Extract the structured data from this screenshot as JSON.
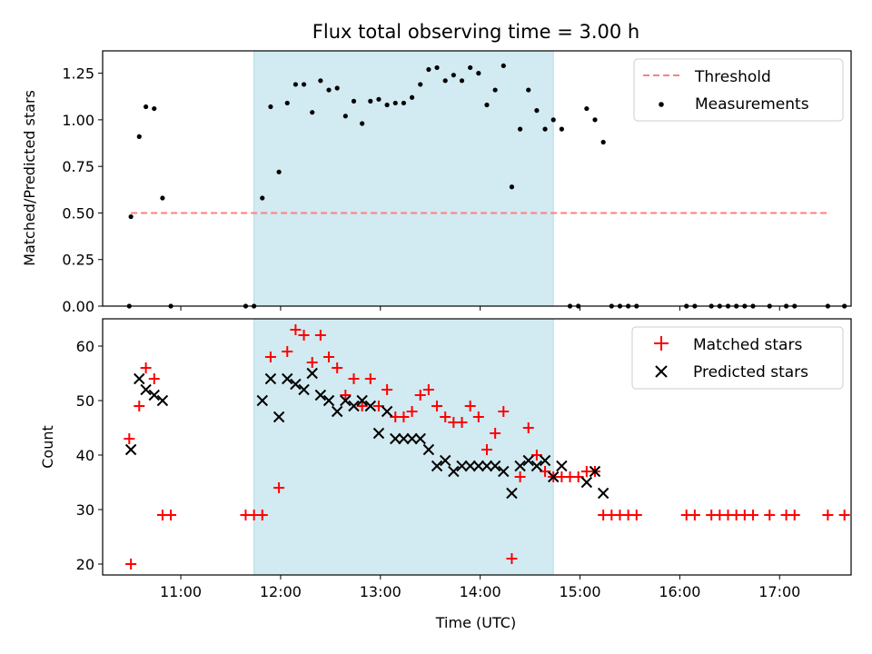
{
  "figure": {
    "title": "Flux total observing time = 3.00 h",
    "xlabel": "Time (UTC)"
  },
  "chart_data": [
    {
      "type": "scatter",
      "ylabel": "Matched/Predicted stars",
      "xlim": [
        "10:13",
        "17:43"
      ],
      "ylim": [
        0,
        1.37
      ],
      "yticks": [
        "0.00",
        "0.25",
        "0.50",
        "0.75",
        "1.00",
        "1.25"
      ],
      "shaded_span": {
        "start": "11:44",
        "end": "14:44",
        "color": "#add8e6"
      },
      "threshold": {
        "value": 0.5,
        "x_start": "10:30",
        "x_end": "17:30",
        "color": "#ff7f7f",
        "style": "dashed"
      },
      "legend": {
        "placement": "top-right",
        "threshold_label": "Threshold",
        "measurements_label": "Measurements"
      },
      "series": [
        {
          "name": "Measurements",
          "color": "#000000",
          "marker": "dot",
          "points": [
            [
              "10:29",
              0.0
            ],
            [
              "10:30",
              0.48
            ],
            [
              "10:35",
              0.91
            ],
            [
              "10:39",
              1.07
            ],
            [
              "10:44",
              1.06
            ],
            [
              "10:49",
              0.58
            ],
            [
              "10:54",
              0.0
            ],
            [
              "11:39",
              0.0
            ],
            [
              "11:44",
              0.0
            ],
            [
              "11:49",
              0.58
            ],
            [
              "11:54",
              1.07
            ],
            [
              "11:59",
              0.72
            ],
            [
              "12:04",
              1.09
            ],
            [
              "12:09",
              1.19
            ],
            [
              "12:14",
              1.19
            ],
            [
              "12:19",
              1.04
            ],
            [
              "12:24",
              1.21
            ],
            [
              "12:29",
              1.16
            ],
            [
              "12:34",
              1.17
            ],
            [
              "12:39",
              1.02
            ],
            [
              "12:44",
              1.1
            ],
            [
              "12:49",
              0.98
            ],
            [
              "12:54",
              1.1
            ],
            [
              "12:59",
              1.11
            ],
            [
              "13:04",
              1.08
            ],
            [
              "13:09",
              1.09
            ],
            [
              "13:14",
              1.09
            ],
            [
              "13:19",
              1.12
            ],
            [
              "13:24",
              1.19
            ],
            [
              "13:29",
              1.27
            ],
            [
              "13:34",
              1.28
            ],
            [
              "13:39",
              1.21
            ],
            [
              "13:44",
              1.24
            ],
            [
              "13:49",
              1.21
            ],
            [
              "13:54",
              1.28
            ],
            [
              "13:59",
              1.25
            ],
            [
              "14:04",
              1.08
            ],
            [
              "14:09",
              1.16
            ],
            [
              "14:14",
              1.29
            ],
            [
              "14:19",
              0.64
            ],
            [
              "14:24",
              0.95
            ],
            [
              "14:29",
              1.16
            ],
            [
              "14:34",
              1.05
            ],
            [
              "14:39",
              0.95
            ],
            [
              "14:44",
              1.0
            ],
            [
              "14:49",
              0.95
            ],
            [
              "14:54",
              0.0
            ],
            [
              "14:59",
              0.0
            ],
            [
              "15:04",
              1.06
            ],
            [
              "15:09",
              1.0
            ],
            [
              "15:14",
              0.88
            ],
            [
              "15:19",
              0.0
            ],
            [
              "15:24",
              0.0
            ],
            [
              "15:29",
              0.0
            ],
            [
              "15:34",
              0.0
            ],
            [
              "16:04",
              0.0
            ],
            [
              "16:09",
              0.0
            ],
            [
              "16:19",
              0.0
            ],
            [
              "16:24",
              0.0
            ],
            [
              "16:29",
              0.0
            ],
            [
              "16:34",
              0.0
            ],
            [
              "16:39",
              0.0
            ],
            [
              "16:44",
              0.0
            ],
            [
              "16:54",
              0.0
            ],
            [
              "17:04",
              0.0
            ],
            [
              "17:09",
              0.0
            ],
            [
              "17:29",
              0.0
            ],
            [
              "17:39",
              0.0
            ]
          ]
        }
      ]
    },
    {
      "type": "scatter",
      "ylabel": "Count",
      "xlim": [
        "10:13",
        "17:43"
      ],
      "ylim": [
        18,
        65
      ],
      "yticks": [
        "20",
        "30",
        "40",
        "50",
        "60"
      ],
      "xticks": [
        "11:00",
        "12:00",
        "13:00",
        "14:00",
        "15:00",
        "16:00",
        "17:00"
      ],
      "shaded_span": {
        "start": "11:44",
        "end": "14:44",
        "color": "#add8e6"
      },
      "legend": {
        "placement": "top-right"
      },
      "series": [
        {
          "name": "Matched stars",
          "color": "#ff0000",
          "marker": "plus",
          "points": [
            [
              "10:29",
              43
            ],
            [
              "10:30",
              20
            ],
            [
              "10:35",
              49
            ],
            [
              "10:39",
              56
            ],
            [
              "10:44",
              54
            ],
            [
              "10:49",
              29
            ],
            [
              "10:54",
              29
            ],
            [
              "11:39",
              29
            ],
            [
              "11:44",
              29
            ],
            [
              "11:49",
              29
            ],
            [
              "11:54",
              58
            ],
            [
              "11:59",
              34
            ],
            [
              "12:04",
              59
            ],
            [
              "12:09",
              63
            ],
            [
              "12:14",
              62
            ],
            [
              "12:19",
              57
            ],
            [
              "12:24",
              62
            ],
            [
              "12:29",
              58
            ],
            [
              "12:34",
              56
            ],
            [
              "12:39",
              51
            ],
            [
              "12:44",
              54
            ],
            [
              "12:49",
              49
            ],
            [
              "12:54",
              54
            ],
            [
              "12:59",
              49
            ],
            [
              "13:04",
              52
            ],
            [
              "13:09",
              47
            ],
            [
              "13:14",
              47
            ],
            [
              "13:19",
              48
            ],
            [
              "13:24",
              51
            ],
            [
              "13:29",
              52
            ],
            [
              "13:34",
              49
            ],
            [
              "13:39",
              47
            ],
            [
              "13:44",
              46
            ],
            [
              "13:49",
              46
            ],
            [
              "13:54",
              49
            ],
            [
              "13:59",
              47
            ],
            [
              "14:04",
              41
            ],
            [
              "14:09",
              44
            ],
            [
              "14:14",
              48
            ],
            [
              "14:19",
              21
            ],
            [
              "14:24",
              36
            ],
            [
              "14:29",
              45
            ],
            [
              "14:34",
              40
            ],
            [
              "14:39",
              37
            ],
            [
              "14:44",
              36
            ],
            [
              "14:49",
              36
            ],
            [
              "14:54",
              36
            ],
            [
              "14:59",
              36
            ],
            [
              "15:04",
              37
            ],
            [
              "15:09",
              37
            ],
            [
              "15:14",
              29
            ],
            [
              "15:19",
              29
            ],
            [
              "15:24",
              29
            ],
            [
              "15:29",
              29
            ],
            [
              "15:34",
              29
            ],
            [
              "16:04",
              29
            ],
            [
              "16:09",
              29
            ],
            [
              "16:19",
              29
            ],
            [
              "16:24",
              29
            ],
            [
              "16:29",
              29
            ],
            [
              "16:34",
              29
            ],
            [
              "16:39",
              29
            ],
            [
              "16:44",
              29
            ],
            [
              "16:54",
              29
            ],
            [
              "17:04",
              29
            ],
            [
              "17:09",
              29
            ],
            [
              "17:29",
              29
            ],
            [
              "17:39",
              29
            ]
          ]
        },
        {
          "name": "Predicted stars",
          "color": "#000000",
          "marker": "x",
          "points": [
            [
              "10:30",
              41
            ],
            [
              "10:35",
              54
            ],
            [
              "10:39",
              52
            ],
            [
              "10:44",
              51
            ],
            [
              "10:49",
              50
            ],
            [
              "11:49",
              50
            ],
            [
              "11:54",
              54
            ],
            [
              "11:59",
              47
            ],
            [
              "12:04",
              54
            ],
            [
              "12:09",
              53
            ],
            [
              "12:14",
              52
            ],
            [
              "12:19",
              55
            ],
            [
              "12:24",
              51
            ],
            [
              "12:29",
              50
            ],
            [
              "12:34",
              48
            ],
            [
              "12:39",
              50
            ],
            [
              "12:44",
              49
            ],
            [
              "12:49",
              50
            ],
            [
              "12:54",
              49
            ],
            [
              "12:59",
              44
            ],
            [
              "13:04",
              48
            ],
            [
              "13:09",
              43
            ],
            [
              "13:14",
              43
            ],
            [
              "13:19",
              43
            ],
            [
              "13:24",
              43
            ],
            [
              "13:29",
              41
            ],
            [
              "13:34",
              38
            ],
            [
              "13:39",
              39
            ],
            [
              "13:44",
              37
            ],
            [
              "13:49",
              38
            ],
            [
              "13:54",
              38
            ],
            [
              "13:59",
              38
            ],
            [
              "14:04",
              38
            ],
            [
              "14:09",
              38
            ],
            [
              "14:14",
              37
            ],
            [
              "14:19",
              33
            ],
            [
              "14:24",
              38
            ],
            [
              "14:29",
              39
            ],
            [
              "14:34",
              38
            ],
            [
              "14:39",
              39
            ],
            [
              "14:44",
              36
            ],
            [
              "14:49",
              38
            ],
            [
              "15:04",
              35
            ],
            [
              "15:09",
              37
            ],
            [
              "15:14",
              33
            ]
          ]
        }
      ]
    }
  ]
}
